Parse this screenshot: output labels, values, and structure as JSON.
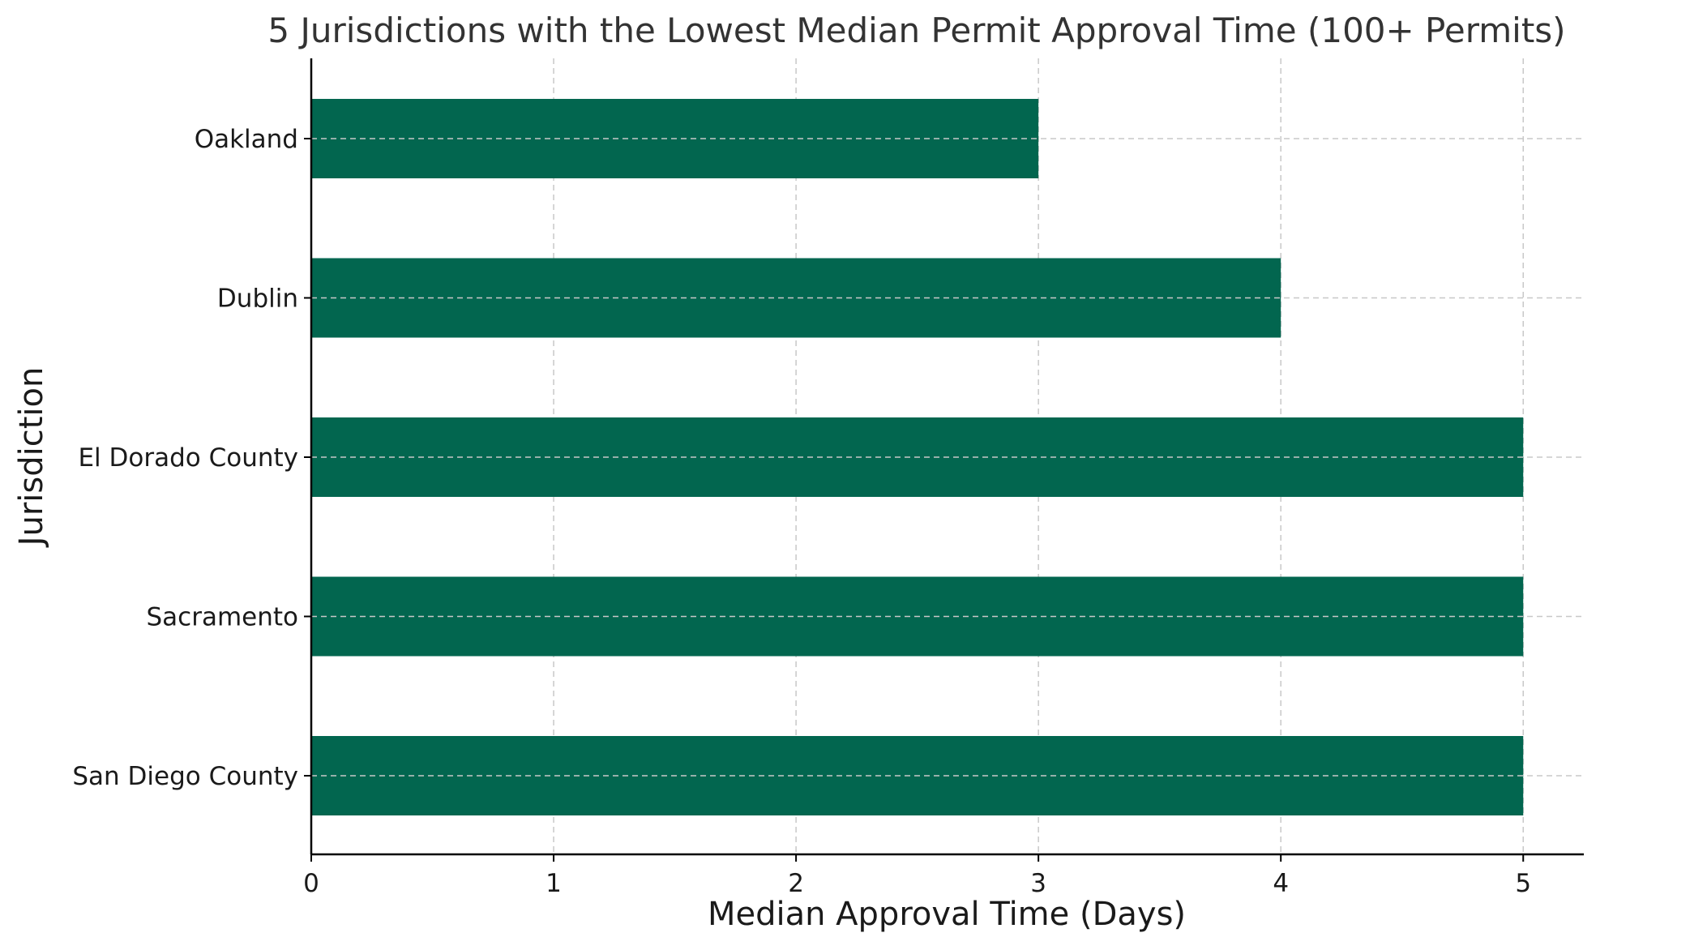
{
  "chart_data": {
    "type": "bar",
    "orientation": "horizontal",
    "title": "5 Jurisdictions with the Lowest Median Permit Approval Time (100+ Permits)",
    "xlabel": "Median Approval Time (Days)",
    "ylabel": "Jurisdiction",
    "categories": [
      "Oakland",
      "Dublin",
      "El Dorado County",
      "Sacramento",
      "San Diego County"
    ],
    "values": [
      3,
      4,
      5,
      5,
      5
    ],
    "xlim": [
      0,
      5.25
    ],
    "xticks": [
      0,
      1,
      2,
      3,
      4,
      5
    ],
    "grid": true,
    "bar_color": "#02664f"
  }
}
